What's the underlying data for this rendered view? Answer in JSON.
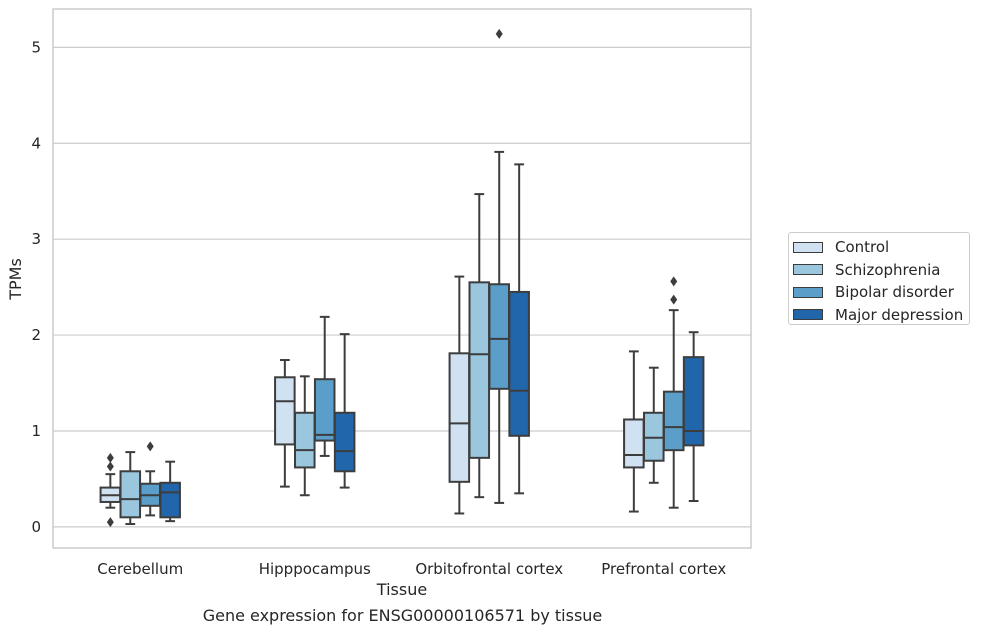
{
  "caption": "Gene expression for ENSG00000106571 by tissue",
  "chart_data": {
    "type": "box",
    "xlabel": "Tissue",
    "ylabel": "TPMs",
    "ylim": [
      -0.22,
      5.4
    ],
    "yticks": [
      0,
      1,
      2,
      3,
      4,
      5
    ],
    "grid": "horizontal",
    "legend_placement": "right",
    "categories": [
      "Cerebellum",
      "Hipppocampus",
      "Orbitofrontal cortex",
      "Prefrontal cortex"
    ],
    "series": [
      {
        "name": "Control",
        "color": "#d0e1f1",
        "boxes": [
          {
            "whisker_low": 0.2,
            "q1": 0.26,
            "median": 0.33,
            "q3": 0.41,
            "whisker_high": 0.55,
            "outliers": [
              0.72,
              0.63,
              0.05
            ]
          },
          {
            "whisker_low": 0.42,
            "q1": 0.86,
            "median": 1.31,
            "q3": 1.56,
            "whisker_high": 1.74,
            "outliers": []
          },
          {
            "whisker_low": 0.14,
            "q1": 0.47,
            "median": 1.08,
            "q3": 1.81,
            "whisker_high": 2.61,
            "outliers": []
          },
          {
            "whisker_low": 0.16,
            "q1": 0.62,
            "median": 0.75,
            "q3": 1.12,
            "whisker_high": 1.83,
            "outliers": []
          }
        ]
      },
      {
        "name": "Schizophrenia",
        "color": "#9ac6de",
        "boxes": [
          {
            "whisker_low": 0.03,
            "q1": 0.1,
            "median": 0.29,
            "q3": 0.58,
            "whisker_high": 0.78,
            "outliers": []
          },
          {
            "whisker_low": 0.33,
            "q1": 0.62,
            "median": 0.8,
            "q3": 1.19,
            "whisker_high": 1.57,
            "outliers": []
          },
          {
            "whisker_low": 0.31,
            "q1": 0.72,
            "median": 1.8,
            "q3": 2.55,
            "whisker_high": 3.47,
            "outliers": []
          },
          {
            "whisker_low": 0.46,
            "q1": 0.69,
            "median": 0.93,
            "q3": 1.19,
            "whisker_high": 1.66,
            "outliers": []
          }
        ]
      },
      {
        "name": "Bipolar disorder",
        "color": "#5a9ec9",
        "boxes": [
          {
            "whisker_low": 0.12,
            "q1": 0.22,
            "median": 0.33,
            "q3": 0.45,
            "whisker_high": 0.58,
            "outliers": [
              0.84
            ]
          },
          {
            "whisker_low": 0.74,
            "q1": 0.9,
            "median": 0.96,
            "q3": 1.54,
            "whisker_high": 2.19,
            "outliers": []
          },
          {
            "whisker_low": 0.25,
            "q1": 1.44,
            "median": 1.96,
            "q3": 2.53,
            "whisker_high": 3.91,
            "outliers": [
              5.14
            ]
          },
          {
            "whisker_low": 0.2,
            "q1": 0.8,
            "median": 1.04,
            "q3": 1.41,
            "whisker_high": 2.26,
            "outliers": [
              2.37,
              2.56
            ]
          }
        ]
      },
      {
        "name": "Major depression",
        "color": "#2166ab",
        "boxes": [
          {
            "whisker_low": 0.06,
            "q1": 0.1,
            "median": 0.36,
            "q3": 0.46,
            "whisker_high": 0.68,
            "outliers": []
          },
          {
            "whisker_low": 0.41,
            "q1": 0.58,
            "median": 0.79,
            "q3": 1.19,
            "whisker_high": 2.01,
            "outliers": []
          },
          {
            "whisker_low": 0.35,
            "q1": 0.95,
            "median": 1.42,
            "q3": 2.45,
            "whisker_high": 3.78,
            "outliers": []
          },
          {
            "whisker_low": 0.27,
            "q1": 0.85,
            "median": 1.0,
            "q3": 1.77,
            "whisker_high": 2.03,
            "outliers": []
          }
        ]
      }
    ]
  }
}
